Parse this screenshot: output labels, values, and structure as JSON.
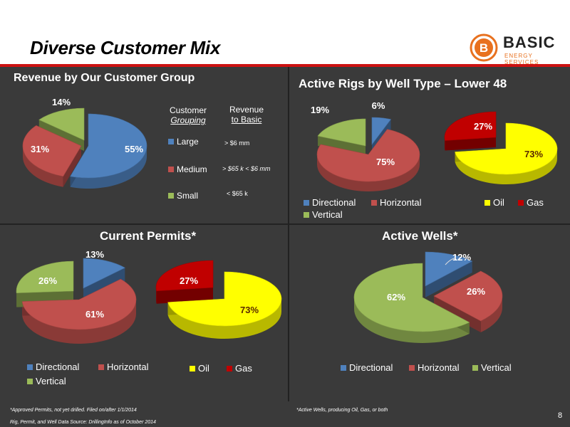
{
  "slide": {
    "title": "Diverse Customer Mix",
    "page_number": "8",
    "logo": {
      "name": "BASIC",
      "subtitle": "ENERGY SERVICES",
      "mark": "B"
    },
    "footnotes": {
      "permits": "*Approved Permits, not yet drilled. Filed on/after 1/1/2014",
      "source": "Rig, Permit, and Well Data Source: DrillingInfo as of October 2014",
      "wells": "*Active Wells, producing Oil, Gas, or both"
    }
  },
  "colors": {
    "blue": "#4f81bd",
    "red": "#c0504d",
    "green": "#9bbb59",
    "yellow": "#ffff00",
    "darkred": "#c00000",
    "panel": "#3a3a3a",
    "accent": "#cc1111",
    "brand_orange": "#e8711f"
  },
  "customer_table": {
    "col1_header_line1": "Customer",
    "col1_header_line2": "Grouping",
    "col2_header_line1": "Revenue",
    "col2_header_line2": "to Basic",
    "rows": [
      {
        "group": "Large",
        "revenue": "> $6 mm"
      },
      {
        "group": "Medium",
        "revenue": "> $65 k < $6 mm"
      },
      {
        "group": "Small",
        "revenue": "< $65 k"
      }
    ]
  },
  "chart_data": [
    {
      "type": "pie",
      "title": "Revenue by Our Customer Group",
      "labels": [
        "Large",
        "Medium",
        "Small"
      ],
      "values": [
        55,
        31,
        14
      ],
      "data_labels": [
        "55%",
        "31%",
        "14%"
      ],
      "colors": [
        "#4f81bd",
        "#c0504d",
        "#9bbb59"
      ]
    },
    {
      "type": "pie",
      "title": "Active Rigs by Well Type – Lower 48",
      "labels": [
        "Directional",
        "Horizontal",
        "Vertical"
      ],
      "values": [
        6,
        75,
        19
      ],
      "data_labels": [
        "6%",
        "75%",
        "19%"
      ],
      "colors": [
        "#4f81bd",
        "#c0504d",
        "#9bbb59"
      ]
    },
    {
      "type": "pie",
      "title": "",
      "labels": [
        "Oil",
        "Gas"
      ],
      "values": [
        73,
        27
      ],
      "data_labels": [
        "73%",
        "27%"
      ],
      "colors": [
        "#ffff00",
        "#c00000"
      ]
    },
    {
      "type": "pie",
      "title": "Current Permits*",
      "labels": [
        "Directional",
        "Horizontal",
        "Vertical"
      ],
      "values": [
        13,
        61,
        26
      ],
      "data_labels": [
        "13%",
        "61%",
        "26%"
      ],
      "colors": [
        "#4f81bd",
        "#c0504d",
        "#9bbb59"
      ]
    },
    {
      "type": "pie",
      "title": "",
      "labels": [
        "Oil",
        "Gas"
      ],
      "values": [
        73,
        27
      ],
      "data_labels": [
        "73%",
        "27%"
      ],
      "colors": [
        "#ffff00",
        "#c00000"
      ]
    },
    {
      "type": "pie",
      "title": "Active Wells*",
      "labels": [
        "Directional",
        "Horizontal",
        "Vertical"
      ],
      "values": [
        12,
        26,
        62
      ],
      "data_labels": [
        "12%",
        "26%",
        "62%"
      ],
      "colors": [
        "#4f81bd",
        "#c0504d",
        "#9bbb59"
      ]
    }
  ]
}
